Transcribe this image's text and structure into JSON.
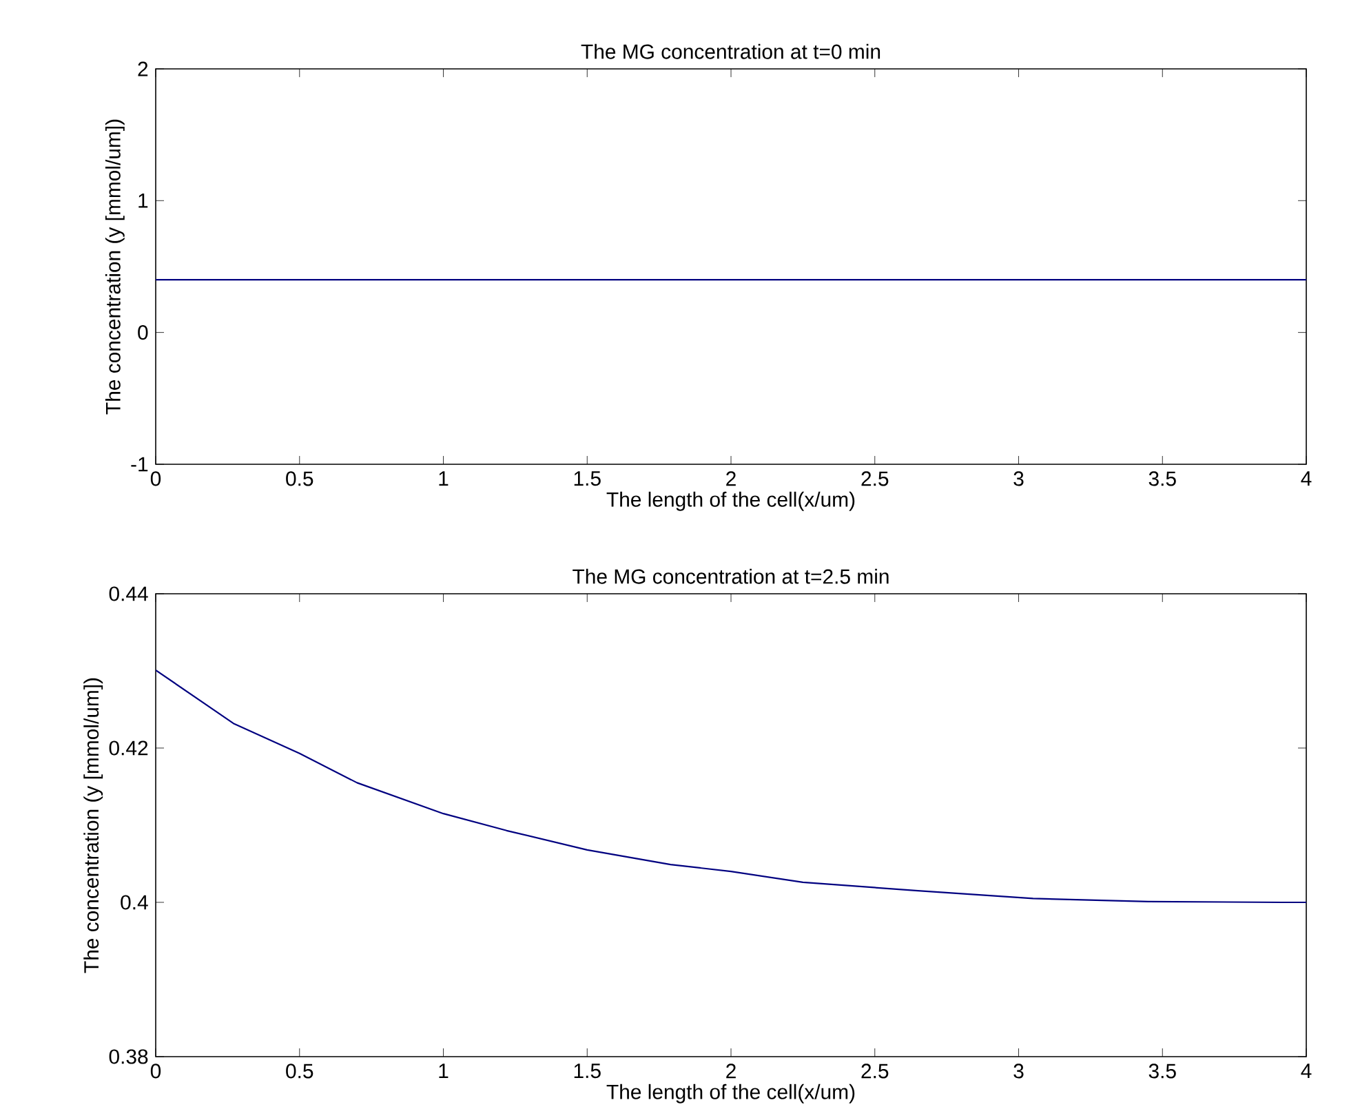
{
  "chart_data": [
    {
      "type": "line",
      "title": "The MG concentration at t=0 min",
      "xlabel": "The length of the cell(x/um)",
      "ylabel": "The concentration (y [mmol/um])",
      "x": [
        0,
        4
      ],
      "series": [
        {
          "color": "#000080",
          "values": [
            0.4,
            0.4
          ]
        }
      ],
      "xlim": [
        0,
        4
      ],
      "ylim": [
        -1,
        2
      ],
      "xticks": [
        0,
        0.5,
        1,
        1.5,
        2,
        2.5,
        3,
        3.5,
        4
      ],
      "yticks": [
        -1,
        0,
        1,
        2
      ]
    },
    {
      "type": "line",
      "title": "The MG concentration at t=2.5 min",
      "xlabel": "The length of the cell(x/um)",
      "ylabel": "The concentration (y [mmol/um])",
      "x": [
        0,
        0.27,
        0.5,
        0.7,
        1.0,
        1.22,
        1.5,
        1.79,
        2.0,
        2.25,
        2.65,
        3.05,
        3.45,
        3.92,
        4.0
      ],
      "series": [
        {
          "color": "#000080",
          "values": [
            0.4301,
            0.4232,
            0.4193,
            0.4155,
            0.4115,
            0.4093,
            0.4068,
            0.4049,
            0.404,
            0.4026,
            0.4015,
            0.4005,
            0.4001,
            0.4,
            0.4
          ]
        }
      ],
      "xlim": [
        0,
        4
      ],
      "ylim": [
        0.38,
        0.44
      ],
      "xticks": [
        0,
        0.5,
        1,
        1.5,
        2,
        2.5,
        3,
        3.5,
        4
      ],
      "yticks": [
        0.38,
        0.4,
        0.42,
        0.44
      ]
    }
  ]
}
